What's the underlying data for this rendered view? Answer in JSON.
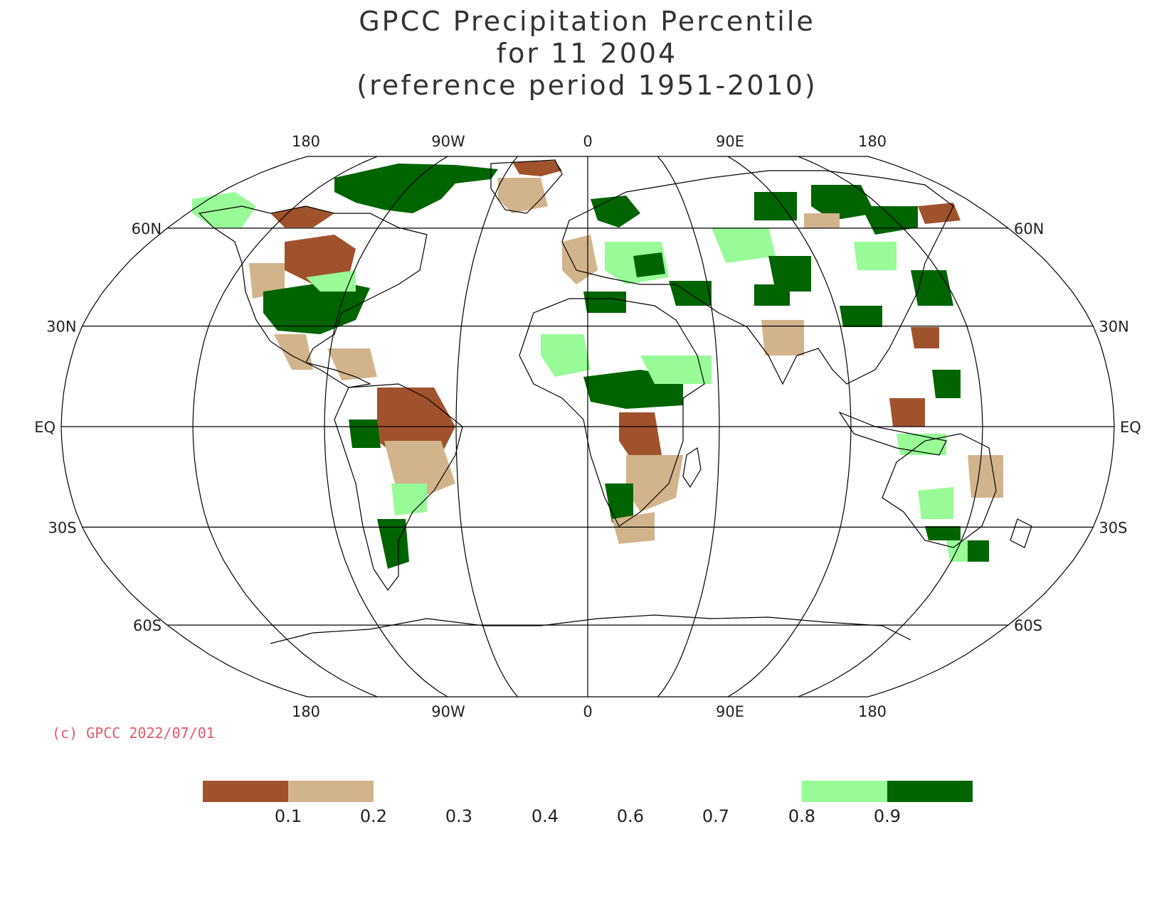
{
  "title": {
    "line1": "GPCC Precipitation Percentile",
    "line2": "for 11 2004",
    "line3": "(reference period 1951-2010)"
  },
  "map": {
    "projection": "Robinson",
    "lon_labels_top": [
      "180",
      "90W",
      "0",
      "90E",
      "180"
    ],
    "lon_labels_bottom": [
      "180",
      "90W",
      "0",
      "90E",
      "180"
    ],
    "lat_labels_left": [
      "60N",
      "30N",
      "EQ",
      "30S",
      "60S"
    ],
    "lat_labels_right": [
      "60N",
      "30N",
      "EQ",
      "30S",
      "60S"
    ]
  },
  "copyright": "(c) GPCC 2022/07/01",
  "colorbar": {
    "tick_labels": [
      "0.1",
      "0.2",
      "0.3",
      "0.4",
      "0.6",
      "0.7",
      "0.8",
      "0.9"
    ],
    "colors": {
      "below_0_1": "#a0522d",
      "0_1_to_0_2": "#d2b48c",
      "0_8_to_0_9": "#98fb98",
      "above_0_9": "#006400"
    }
  }
}
